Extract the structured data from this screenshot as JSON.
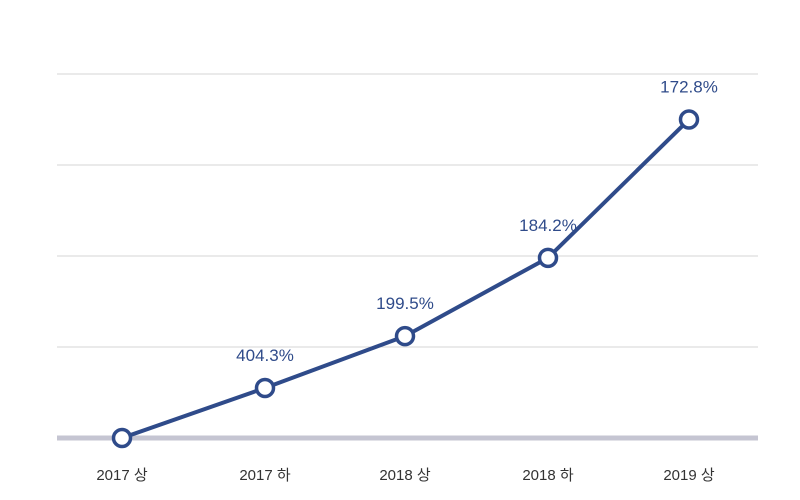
{
  "colors": {
    "line": "#2f4b8a",
    "grid": "#d6d6d6",
    "baseline": "#c5c5d2",
    "label": "#2f4b8a"
  },
  "chart_data": {
    "type": "line",
    "categories": [
      "2017 상",
      "2017 하",
      "2018 상",
      "2018 하",
      "2019 상"
    ],
    "series": [
      {
        "values": [
          0,
          55,
          112,
          198,
          350
        ],
        "data_labels": [
          "",
          "404.3%",
          "199.5%",
          "184.2%",
          "172.8%"
        ]
      }
    ],
    "title": "",
    "xlabel": "",
    "ylabel": "",
    "ylim": [
      0,
      400
    ],
    "y_axis_labels_shown": false,
    "grid": true,
    "legend": "none"
  }
}
